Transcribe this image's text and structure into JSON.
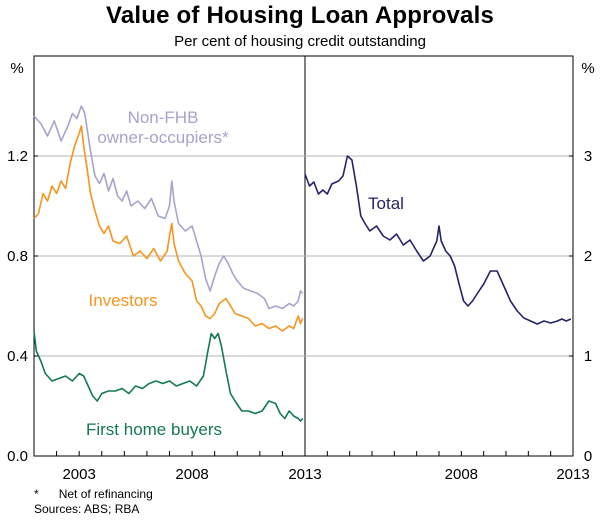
{
  "chart_data": {
    "type": "line",
    "title": "Value of Housing Loan Approvals",
    "subtitle": "Per cent of housing credit outstanding",
    "left_panel": {
      "y_unit": "%",
      "ylim": [
        0,
        1.6
      ],
      "y_ticks": [
        0.0,
        0.4,
        0.8,
        1.2
      ],
      "y_tick_labels": [
        "0.0",
        "0.4",
        "0.8",
        "1.2"
      ],
      "xlim": [
        2001.0,
        2013.0
      ],
      "x_ticks": [
        2003,
        2008,
        2013
      ],
      "x_tick_labels": [
        "2003",
        "2008",
        "2013"
      ],
      "series": [
        {
          "name": "Non-FHB owner-occupiers*",
          "label_lines": [
            "Non-FHB",
            "owner-occupiers*"
          ],
          "color": "#a7a3cd",
          "points": [
            [
              2001.0,
              1.36
            ],
            [
              2001.3,
              1.33
            ],
            [
              2001.6,
              1.28
            ],
            [
              2001.9,
              1.34
            ],
            [
              2002.2,
              1.26
            ],
            [
              2002.5,
              1.32
            ],
            [
              2002.7,
              1.37
            ],
            [
              2002.9,
              1.35
            ],
            [
              2003.1,
              1.4
            ],
            [
              2003.25,
              1.37
            ],
            [
              2003.4,
              1.28
            ],
            [
              2003.5,
              1.22
            ],
            [
              2003.7,
              1.12
            ],
            [
              2003.9,
              1.09
            ],
            [
              2004.1,
              1.13
            ],
            [
              2004.3,
              1.06
            ],
            [
              2004.5,
              1.11
            ],
            [
              2004.7,
              1.04
            ],
            [
              2004.9,
              1.02
            ],
            [
              2005.1,
              1.06
            ],
            [
              2005.3,
              1.0
            ],
            [
              2005.6,
              1.02
            ],
            [
              2005.9,
              0.99
            ],
            [
              2006.2,
              1.03
            ],
            [
              2006.5,
              0.96
            ],
            [
              2006.8,
              0.95
            ],
            [
              2007.0,
              1.0
            ],
            [
              2007.1,
              1.1
            ],
            [
              2007.2,
              1.02
            ],
            [
              2007.4,
              0.93
            ],
            [
              2007.7,
              0.9
            ],
            [
              2008.0,
              0.92
            ],
            [
              2008.2,
              0.86
            ],
            [
              2008.4,
              0.8
            ],
            [
              2008.6,
              0.71
            ],
            [
              2008.8,
              0.66
            ],
            [
              2009.0,
              0.72
            ],
            [
              2009.2,
              0.77
            ],
            [
              2009.4,
              0.8
            ],
            [
              2009.6,
              0.77
            ],
            [
              2009.8,
              0.73
            ],
            [
              2010.0,
              0.7
            ],
            [
              2010.3,
              0.67
            ],
            [
              2010.6,
              0.66
            ],
            [
              2010.9,
              0.65
            ],
            [
              2011.2,
              0.63
            ],
            [
              2011.4,
              0.59
            ],
            [
              2011.7,
              0.6
            ],
            [
              2012.0,
              0.59
            ],
            [
              2012.3,
              0.61
            ],
            [
              2012.5,
              0.6
            ],
            [
              2012.7,
              0.62
            ],
            [
              2012.8,
              0.66
            ],
            [
              2012.9,
              0.65
            ]
          ]
        },
        {
          "name": "Investors",
          "label_lines": [
            "Investors"
          ],
          "color": "#f7941d",
          "points": [
            [
              2001.0,
              0.95
            ],
            [
              2001.2,
              0.97
            ],
            [
              2001.4,
              1.05
            ],
            [
              2001.6,
              1.02
            ],
            [
              2001.8,
              1.08
            ],
            [
              2002.0,
              1.05
            ],
            [
              2002.2,
              1.1
            ],
            [
              2002.4,
              1.07
            ],
            [
              2002.6,
              1.17
            ],
            [
              2002.8,
              1.24
            ],
            [
              2003.0,
              1.29
            ],
            [
              2003.1,
              1.32
            ],
            [
              2003.2,
              1.24
            ],
            [
              2003.35,
              1.15
            ],
            [
              2003.5,
              1.05
            ],
            [
              2003.7,
              0.98
            ],
            [
              2003.9,
              0.92
            ],
            [
              2004.1,
              0.89
            ],
            [
              2004.3,
              0.92
            ],
            [
              2004.5,
              0.86
            ],
            [
              2004.8,
              0.85
            ],
            [
              2005.1,
              0.88
            ],
            [
              2005.4,
              0.8
            ],
            [
              2005.7,
              0.82
            ],
            [
              2006.0,
              0.79
            ],
            [
              2006.3,
              0.83
            ],
            [
              2006.6,
              0.78
            ],
            [
              2006.9,
              0.82
            ],
            [
              2007.0,
              0.88
            ],
            [
              2007.1,
              0.93
            ],
            [
              2007.2,
              0.85
            ],
            [
              2007.4,
              0.78
            ],
            [
              2007.7,
              0.73
            ],
            [
              2008.0,
              0.7
            ],
            [
              2008.2,
              0.62
            ],
            [
              2008.4,
              0.6
            ],
            [
              2008.6,
              0.56
            ],
            [
              2008.8,
              0.55
            ],
            [
              2009.0,
              0.57
            ],
            [
              2009.2,
              0.61
            ],
            [
              2009.5,
              0.63
            ],
            [
              2009.7,
              0.6
            ],
            [
              2009.9,
              0.57
            ],
            [
              2010.2,
              0.56
            ],
            [
              2010.5,
              0.55
            ],
            [
              2010.8,
              0.52
            ],
            [
              2011.1,
              0.53
            ],
            [
              2011.4,
              0.51
            ],
            [
              2011.7,
              0.52
            ],
            [
              2012.0,
              0.5
            ],
            [
              2012.3,
              0.52
            ],
            [
              2012.5,
              0.51
            ],
            [
              2012.7,
              0.56
            ],
            [
              2012.8,
              0.53
            ],
            [
              2012.9,
              0.55
            ]
          ]
        },
        {
          "name": "First home buyers",
          "label_lines": [
            "First home buyers"
          ],
          "color": "#127a4d",
          "points": [
            [
              2001.0,
              0.5
            ],
            [
              2001.1,
              0.42
            ],
            [
              2001.3,
              0.38
            ],
            [
              2001.5,
              0.33
            ],
            [
              2001.8,
              0.3
            ],
            [
              2002.1,
              0.31
            ],
            [
              2002.4,
              0.32
            ],
            [
              2002.7,
              0.3
            ],
            [
              2003.0,
              0.33
            ],
            [
              2003.2,
              0.32
            ],
            [
              2003.4,
              0.28
            ],
            [
              2003.6,
              0.24
            ],
            [
              2003.8,
              0.22
            ],
            [
              2004.0,
              0.25
            ],
            [
              2004.3,
              0.26
            ],
            [
              2004.6,
              0.26
            ],
            [
              2004.9,
              0.27
            ],
            [
              2005.2,
              0.25
            ],
            [
              2005.5,
              0.28
            ],
            [
              2005.8,
              0.27
            ],
            [
              2006.1,
              0.29
            ],
            [
              2006.4,
              0.3
            ],
            [
              2006.7,
              0.29
            ],
            [
              2007.0,
              0.3
            ],
            [
              2007.3,
              0.28
            ],
            [
              2007.6,
              0.29
            ],
            [
              2007.9,
              0.3
            ],
            [
              2008.2,
              0.28
            ],
            [
              2008.5,
              0.32
            ],
            [
              2008.7,
              0.42
            ],
            [
              2008.85,
              0.49
            ],
            [
              2009.0,
              0.47
            ],
            [
              2009.15,
              0.49
            ],
            [
              2009.3,
              0.44
            ],
            [
              2009.5,
              0.34
            ],
            [
              2009.7,
              0.25
            ],
            [
              2009.9,
              0.22
            ],
            [
              2010.2,
              0.18
            ],
            [
              2010.5,
              0.18
            ],
            [
              2010.8,
              0.17
            ],
            [
              2011.1,
              0.18
            ],
            [
              2011.4,
              0.22
            ],
            [
              2011.7,
              0.21
            ],
            [
              2011.9,
              0.17
            ],
            [
              2012.1,
              0.15
            ],
            [
              2012.3,
              0.18
            ],
            [
              2012.5,
              0.16
            ],
            [
              2012.7,
              0.15
            ],
            [
              2012.8,
              0.14
            ],
            [
              2012.9,
              0.15
            ]
          ]
        }
      ]
    },
    "right_panel": {
      "y_unit": "%",
      "ylim": [
        0,
        4.0
      ],
      "y_ticks": [
        0,
        1,
        2,
        3
      ],
      "y_tick_labels": [
        "0",
        "1",
        "2",
        "3"
      ],
      "xlim": [
        2001.0,
        2013.0
      ],
      "x_ticks": [
        2008,
        2013
      ],
      "x_tick_labels": [
        "2008",
        "2013"
      ],
      "series": [
        {
          "name": "Total",
          "label_lines": [
            "Total"
          ],
          "color": "#24246b",
          "points": [
            [
              2001.0,
              2.82
            ],
            [
              2001.2,
              2.7
            ],
            [
              2001.4,
              2.74
            ],
            [
              2001.6,
              2.62
            ],
            [
              2001.8,
              2.66
            ],
            [
              2002.0,
              2.62
            ],
            [
              2002.2,
              2.72
            ],
            [
              2002.5,
              2.75
            ],
            [
              2002.7,
              2.8
            ],
            [
              2002.9,
              3.0
            ],
            [
              2003.1,
              2.96
            ],
            [
              2003.3,
              2.7
            ],
            [
              2003.5,
              2.4
            ],
            [
              2003.7,
              2.32
            ],
            [
              2003.9,
              2.25
            ],
            [
              2004.2,
              2.3
            ],
            [
              2004.5,
              2.2
            ],
            [
              2004.8,
              2.16
            ],
            [
              2005.1,
              2.22
            ],
            [
              2005.4,
              2.11
            ],
            [
              2005.7,
              2.16
            ],
            [
              2006.0,
              2.05
            ],
            [
              2006.3,
              1.95
            ],
            [
              2006.6,
              2.0
            ],
            [
              2006.9,
              2.15
            ],
            [
              2007.0,
              2.3
            ],
            [
              2007.1,
              2.15
            ],
            [
              2007.3,
              2.05
            ],
            [
              2007.5,
              2.0
            ],
            [
              2007.7,
              1.9
            ],
            [
              2007.9,
              1.72
            ],
            [
              2008.1,
              1.55
            ],
            [
              2008.3,
              1.5
            ],
            [
              2008.5,
              1.55
            ],
            [
              2008.7,
              1.62
            ],
            [
              2009.0,
              1.72
            ],
            [
              2009.3,
              1.85
            ],
            [
              2009.6,
              1.85
            ],
            [
              2009.9,
              1.7
            ],
            [
              2010.2,
              1.55
            ],
            [
              2010.5,
              1.45
            ],
            [
              2010.8,
              1.38
            ],
            [
              2011.1,
              1.35
            ],
            [
              2011.4,
              1.32
            ],
            [
              2011.7,
              1.35
            ],
            [
              2012.0,
              1.33
            ],
            [
              2012.3,
              1.35
            ],
            [
              2012.5,
              1.37
            ],
            [
              2012.7,
              1.35
            ],
            [
              2012.9,
              1.37
            ]
          ]
        }
      ]
    }
  },
  "notes": {
    "footnote_marker": "*",
    "footnote_text": "Net of refinancing",
    "sources": "Sources: ABS; RBA"
  }
}
